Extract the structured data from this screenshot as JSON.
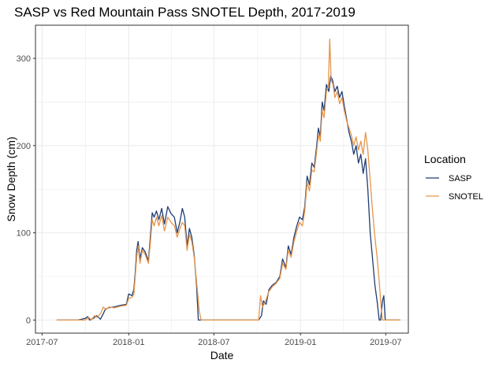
{
  "chart_data": {
    "type": "line",
    "title": "SASP vs Red Mountain Pass SNOTEL Depth, 2017-2019",
    "xlabel": "Date",
    "ylabel": "Snow Depth (cm)",
    "x_ticks": [
      "2017-07",
      "2018-01",
      "2018-07",
      "2019-01",
      "2019-07"
    ],
    "y_ticks": [
      0,
      100,
      200,
      300
    ],
    "xlim": [
      "2017-06-17",
      "2019-08-18"
    ],
    "ylim": [
      -15,
      338
    ],
    "grid": true,
    "legend": {
      "title": "Location",
      "placement": "right"
    },
    "series": [
      {
        "name": "SASP",
        "color": "#1f3d73",
        "points": [
          [
            "2017-08-01",
            0
          ],
          [
            "2017-09-15",
            0
          ],
          [
            "2017-10-01",
            2
          ],
          [
            "2017-10-06",
            4
          ],
          [
            "2017-10-10",
            0
          ],
          [
            "2017-10-18",
            2
          ],
          [
            "2017-10-25",
            5
          ],
          [
            "2017-11-02",
            1
          ],
          [
            "2017-11-07",
            6
          ],
          [
            "2017-11-12",
            12
          ],
          [
            "2017-11-18",
            14
          ],
          [
            "2017-12-01",
            15
          ],
          [
            "2017-12-15",
            17
          ],
          [
            "2017-12-27",
            18
          ],
          [
            "2018-01-01",
            30
          ],
          [
            "2018-01-08",
            28
          ],
          [
            "2018-01-12",
            35
          ],
          [
            "2018-01-15",
            55
          ],
          [
            "2018-01-18",
            80
          ],
          [
            "2018-01-21",
            90
          ],
          [
            "2018-01-25",
            70
          ],
          [
            "2018-01-30",
            83
          ],
          [
            "2018-02-05",
            78
          ],
          [
            "2018-02-12",
            68
          ],
          [
            "2018-02-16",
            95
          ],
          [
            "2018-02-20",
            123
          ],
          [
            "2018-02-24",
            118
          ],
          [
            "2018-03-01",
            125
          ],
          [
            "2018-03-06",
            115
          ],
          [
            "2018-03-12",
            128
          ],
          [
            "2018-03-18",
            110
          ],
          [
            "2018-03-25",
            130
          ],
          [
            "2018-04-01",
            122
          ],
          [
            "2018-04-08",
            118
          ],
          [
            "2018-04-14",
            100
          ],
          [
            "2018-04-20",
            113
          ],
          [
            "2018-04-25",
            128
          ],
          [
            "2018-04-30",
            118
          ],
          [
            "2018-05-05",
            85
          ],
          [
            "2018-05-10",
            105
          ],
          [
            "2018-05-15",
            95
          ],
          [
            "2018-05-20",
            75
          ],
          [
            "2018-05-25",
            40
          ],
          [
            "2018-05-29",
            0
          ],
          [
            "2018-10-04",
            0
          ],
          [
            "2018-10-10",
            5
          ],
          [
            "2018-10-14",
            22
          ],
          [
            "2018-10-20",
            18
          ],
          [
            "2018-10-26",
            35
          ],
          [
            "2018-11-02",
            40
          ],
          [
            "2018-11-10",
            43
          ],
          [
            "2018-11-18",
            50
          ],
          [
            "2018-11-24",
            70
          ],
          [
            "2018-12-01",
            60
          ],
          [
            "2018-12-06",
            85
          ],
          [
            "2018-12-12",
            75
          ],
          [
            "2018-12-18",
            95
          ],
          [
            "2018-12-24",
            108
          ],
          [
            "2018-12-30",
            118
          ],
          [
            "2019-01-05",
            115
          ],
          [
            "2019-01-10",
            130
          ],
          [
            "2019-01-15",
            165
          ],
          [
            "2019-01-20",
            155
          ],
          [
            "2019-01-25",
            180
          ],
          [
            "2019-01-30",
            175
          ],
          [
            "2019-02-04",
            198
          ],
          [
            "2019-02-08",
            220
          ],
          [
            "2019-02-12",
            210
          ],
          [
            "2019-02-16",
            250
          ],
          [
            "2019-02-20",
            240
          ],
          [
            "2019-02-25",
            270
          ],
          [
            "2019-03-02",
            262
          ],
          [
            "2019-03-06",
            280
          ],
          [
            "2019-03-10",
            275
          ],
          [
            "2019-03-15",
            262
          ],
          [
            "2019-03-20",
            268
          ],
          [
            "2019-03-25",
            255
          ],
          [
            "2019-03-30",
            262
          ],
          [
            "2019-04-04",
            245
          ],
          [
            "2019-04-09",
            230
          ],
          [
            "2019-04-14",
            215
          ],
          [
            "2019-04-19",
            205
          ],
          [
            "2019-04-24",
            190
          ],
          [
            "2019-04-29",
            200
          ],
          [
            "2019-05-04",
            180
          ],
          [
            "2019-05-09",
            190
          ],
          [
            "2019-05-14",
            168
          ],
          [
            "2019-05-19",
            185
          ],
          [
            "2019-05-24",
            150
          ],
          [
            "2019-05-29",
            100
          ],
          [
            "2019-06-03",
            70
          ],
          [
            "2019-06-08",
            40
          ],
          [
            "2019-06-13",
            20
          ],
          [
            "2019-06-17",
            0
          ],
          [
            "2019-06-20",
            0
          ],
          [
            "2019-06-24",
            22
          ],
          [
            "2019-06-27",
            28
          ],
          [
            "2019-06-30",
            0
          ],
          [
            "2019-08-01",
            0
          ]
        ]
      },
      {
        "name": "SNOTEL",
        "color": "#e5964b",
        "points": [
          [
            "2017-08-01",
            0
          ],
          [
            "2017-09-15",
            0
          ],
          [
            "2017-10-01",
            0
          ],
          [
            "2017-10-08",
            3
          ],
          [
            "2017-10-14",
            0
          ],
          [
            "2017-10-20",
            5
          ],
          [
            "2017-10-26",
            3
          ],
          [
            "2017-11-03",
            8
          ],
          [
            "2017-11-08",
            15
          ],
          [
            "2017-11-14",
            12
          ],
          [
            "2017-11-20",
            15
          ],
          [
            "2017-12-01",
            14
          ],
          [
            "2017-12-15",
            16
          ],
          [
            "2017-12-27",
            17
          ],
          [
            "2018-01-01",
            25
          ],
          [
            "2018-01-08",
            26
          ],
          [
            "2018-01-12",
            30
          ],
          [
            "2018-01-15",
            50
          ],
          [
            "2018-01-18",
            72
          ],
          [
            "2018-01-21",
            85
          ],
          [
            "2018-01-25",
            65
          ],
          [
            "2018-01-30",
            80
          ],
          [
            "2018-02-05",
            75
          ],
          [
            "2018-02-12",
            65
          ],
          [
            "2018-02-16",
            88
          ],
          [
            "2018-02-20",
            115
          ],
          [
            "2018-02-24",
            108
          ],
          [
            "2018-03-01",
            118
          ],
          [
            "2018-03-06",
            108
          ],
          [
            "2018-03-12",
            120
          ],
          [
            "2018-03-18",
            102
          ],
          [
            "2018-03-25",
            118
          ],
          [
            "2018-04-01",
            112
          ],
          [
            "2018-04-08",
            108
          ],
          [
            "2018-04-14",
            95
          ],
          [
            "2018-04-20",
            105
          ],
          [
            "2018-04-25",
            112
          ],
          [
            "2018-04-30",
            108
          ],
          [
            "2018-05-05",
            80
          ],
          [
            "2018-05-10",
            98
          ],
          [
            "2018-05-15",
            90
          ],
          [
            "2018-05-20",
            72
          ],
          [
            "2018-05-25",
            45
          ],
          [
            "2018-05-31",
            10
          ],
          [
            "2018-06-04",
            0
          ],
          [
            "2018-10-04",
            0
          ],
          [
            "2018-10-08",
            28
          ],
          [
            "2018-10-12",
            15
          ],
          [
            "2018-10-18",
            20
          ],
          [
            "2018-10-25",
            32
          ],
          [
            "2018-11-02",
            38
          ],
          [
            "2018-11-10",
            42
          ],
          [
            "2018-11-18",
            48
          ],
          [
            "2018-11-24",
            65
          ],
          [
            "2018-12-01",
            58
          ],
          [
            "2018-12-06",
            80
          ],
          [
            "2018-12-12",
            72
          ],
          [
            "2018-12-18",
            90
          ],
          [
            "2018-12-24",
            102
          ],
          [
            "2018-12-30",
            112
          ],
          [
            "2019-01-05",
            108
          ],
          [
            "2019-01-10",
            125
          ],
          [
            "2019-01-15",
            158
          ],
          [
            "2019-01-20",
            148
          ],
          [
            "2019-01-25",
            172
          ],
          [
            "2019-01-30",
            170
          ],
          [
            "2019-02-04",
            192
          ],
          [
            "2019-02-08",
            212
          ],
          [
            "2019-02-12",
            205
          ],
          [
            "2019-02-16",
            240
          ],
          [
            "2019-02-20",
            232
          ],
          [
            "2019-02-25",
            262
          ],
          [
            "2019-03-01",
            268
          ],
          [
            "2019-03-04",
            322
          ],
          [
            "2019-03-07",
            275
          ],
          [
            "2019-03-11",
            270
          ],
          [
            "2019-03-15",
            255
          ],
          [
            "2019-03-20",
            262
          ],
          [
            "2019-03-25",
            248
          ],
          [
            "2019-03-30",
            255
          ],
          [
            "2019-04-04",
            240
          ],
          [
            "2019-04-09",
            228
          ],
          [
            "2019-04-14",
            220
          ],
          [
            "2019-04-19",
            212
          ],
          [
            "2019-04-24",
            200
          ],
          [
            "2019-04-29",
            210
          ],
          [
            "2019-05-04",
            195
          ],
          [
            "2019-05-09",
            205
          ],
          [
            "2019-05-14",
            190
          ],
          [
            "2019-05-19",
            215
          ],
          [
            "2019-05-24",
            195
          ],
          [
            "2019-05-29",
            160
          ],
          [
            "2019-06-03",
            125
          ],
          [
            "2019-06-08",
            95
          ],
          [
            "2019-06-13",
            70
          ],
          [
            "2019-06-17",
            45
          ],
          [
            "2019-06-21",
            15
          ],
          [
            "2019-06-24",
            0
          ],
          [
            "2019-08-01",
            0
          ]
        ]
      }
    ]
  }
}
